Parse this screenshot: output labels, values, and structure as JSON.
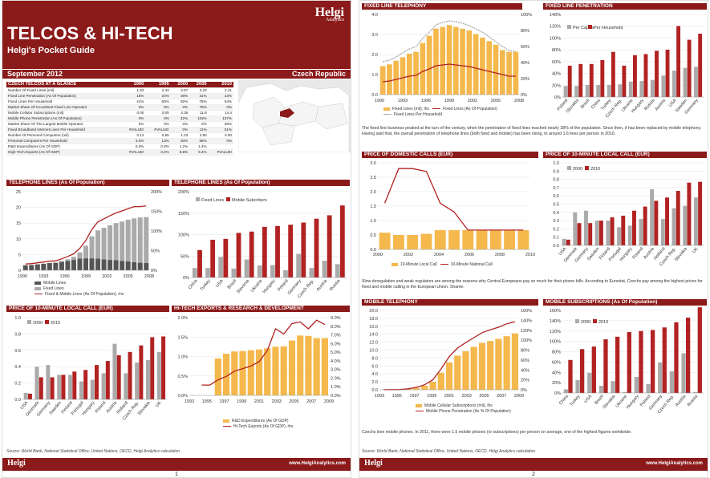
{
  "page1": {
    "title": "TELCOS & HI-TECH",
    "subtitle": "Helgi's Pocket Guide",
    "date": "September 2012",
    "country": "Czech Republic",
    "brand": "Helgi",
    "brand_sub": "Analytics",
    "glance": {
      "title": "CZECH TELCOS AT A GLANCE",
      "years": [
        "1990",
        "1995",
        "2000",
        "2005",
        "2010"
      ],
      "rows": [
        {
          "label": "Number Of Fixed Lines (mil)",
          "v": [
            "1.62",
            "2.44",
            "3.87",
            "3.22",
            "2.41"
          ]
        },
        {
          "label": "Fixed Line Penetration (As Of Population)",
          "v": [
            "16%",
            "24%",
            "38%",
            "31%",
            "23%"
          ]
        },
        {
          "label": "Fixed Lines Per Household",
          "v": [
            "41%",
            "60%",
            "92%",
            "78%",
            "54%"
          ]
        },
        {
          "label": "Market Share Of Incumbent Fixed Line Operator",
          "v": [
            "0%",
            "0%",
            "0%",
            "76%",
            "0%"
          ]
        },
        {
          "label": "Mobile Cellular Subscriptions (mil)",
          "v": [
            "0.00",
            "0.05",
            "4.35",
            "11.8",
            "14.4"
          ]
        },
        {
          "label": "Mobile Phone Penetration (As Of Population)",
          "v": [
            "0%",
            "0%",
            "42%",
            "115%",
            "137%"
          ]
        },
        {
          "label": "Market Share Of The Largest Mobile Operator",
          "v": [
            "0%",
            "0%",
            "0%",
            "0%",
            "38%"
          ]
        },
        {
          "label": "Fixed Broadband Internet Lines Per Household",
          "v": [
            "#VALUE!",
            "#VALUE!",
            "0%",
            "11%",
            "51%"
          ]
        },
        {
          "label": "Number Of Personal Computers (mil)",
          "v": [
            "0.12",
            "0.55",
            "1.23",
            "2.80",
            "0.00"
          ]
        },
        {
          "label": "Personal Computers Per Household",
          "v": [
            "3.0%",
            "13%",
            "30%",
            "68%",
            "0%"
          ]
        },
        {
          "label": "R&D Expenditures (As Of GDP)",
          "v": [
            "0.0%",
            "0.0%",
            "1.2%",
            "1.4%",
            ""
          ]
        },
        {
          "label": "High-Tech Exports (As Of GDP)",
          "v": [
            "#VALUE!",
            "3.2%",
            "5.8%",
            "9.4%",
            "#VALUE!"
          ]
        }
      ]
    },
    "sections": {
      "tel_lines": "TELEPHONE LINES (As Of Population)",
      "tel_lines2": "TELEPHONE LINES (As Of Population)",
      "price_local": "PRICE OF 10-MINUTE LOCAL CALL (EUR)",
      "hitech": "HI-TECH EXPORTS & RESEARCH & DEVELOPMENT"
    },
    "source": "Source: World Bank, National Statistical Office, United Nations, OECD, Helgi Analytics calculation",
    "url": "www.HelgiAnalytics.com",
    "page_number": "1"
  },
  "page2": {
    "sections": {
      "fixed_tel": "FIXED LINE TELEPHONY",
      "fixed_pen": "FIXED LINE PENETRATION",
      "price_dom": "PRICE OF DOMESTIC CALLS (EUR)",
      "price_local": "PRICE OF 10-MINUTE LOCAL CALL (EUR)",
      "mobile_tel": "MOBILE TELEPHONY",
      "mobile_sub": "MOBILE SUBSCRIPTIONS (As Of Population)"
    },
    "para1": "The fixed line business peaked at the turn of the century, when the penetration of fixed lines reached nearly 38% of the population. Since then, it has been replaced by mobile telephony. Having said that, the overall penetration of telephone lines (both fixed and mobile) has been rising, to around 1.6 lines per person in 2010.",
    "para2": "Slow deregulation and weak regulators are among the reasons why Central Europeans pay so much for their phone bills. According to Eurostat, Czechs pay among the highest prices for fixed and mobile calling in the European Union. Shame.",
    "para3": "Czechs love mobile phones. In 2011, there were 1.5 mobile phones (or subscriptions) per person on average, one of the highest figures worldwide.",
    "source": "Source: World Bank, National Statistical Office, United Nations, OECD, Helgi Analytics calculation",
    "url": "www.HelgiAnalytics.com",
    "page_number": "2"
  },
  "colors": {
    "brand": "#8b1a1a",
    "gray": "#9e9e9e",
    "orange": "#f5b84c",
    "red": "#b22222",
    "darkgray": "#555555"
  },
  "chart_data": [
    {
      "id": "p1_tel_lines",
      "type": "area",
      "x_ticks": [
        "1990",
        "1993",
        "1996",
        "1999",
        "2002",
        "2005",
        "2008"
      ],
      "ylim": [
        0,
        25
      ],
      "y2lim": [
        0,
        2.0
      ],
      "y2_ticks": [
        "0%",
        "50%",
        "100%",
        "150%",
        "200%"
      ],
      "y_ticks": [
        "0",
        "5",
        "10",
        "15",
        "20",
        "25"
      ],
      "series": [
        {
          "name": "Mobile Lines",
          "values": [
            0,
            0,
            0,
            0,
            0,
            0.05,
            0.2,
            0.5,
            1.0,
            2.0,
            4.0,
            7.0,
            9.0,
            10.0,
            11.0,
            11.8,
            12.5,
            13.3,
            13.9,
            14.4,
            14.6
          ]
        },
        {
          "name": "Fixed Lines",
          "values": [
            1.6,
            1.7,
            1.9,
            2.1,
            2.3,
            2.4,
            2.7,
            3.0,
            3.3,
            3.7,
            3.8,
            3.8,
            3.7,
            3.5,
            3.3,
            3.2,
            3.0,
            2.8,
            2.6,
            2.4,
            2.3
          ]
        },
        {
          "name": "Fixed & Mobile Lines (As Of Population), rhs",
          "values": [
            0.16,
            0.17,
            0.19,
            0.21,
            0.23,
            0.24,
            0.29,
            0.35,
            0.42,
            0.56,
            0.76,
            1.04,
            1.23,
            1.31,
            1.39,
            1.46,
            1.51,
            1.57,
            1.62,
            1.62,
            1.64
          ]
        }
      ]
    },
    {
      "id": "p1_tel_lines_countries",
      "type": "bar",
      "categories": [
        "China",
        "Turkey",
        "USA",
        "Brazil",
        "Slovenia",
        "Ukraine",
        "Hungary",
        "Poland",
        "Germany",
        "Czech Rep.",
        "Austria",
        "Russia"
      ],
      "ylim": [
        0,
        2.0
      ],
      "y_ticks": [
        "0%",
        "50%",
        "100%",
        "150%",
        "200%"
      ],
      "series": [
        {
          "name": "Fixed Lines",
          "values": [
            0.22,
            0.22,
            0.48,
            0.21,
            0.42,
            0.28,
            0.29,
            0.17,
            0.55,
            0.22,
            0.39,
            0.31
          ]
        },
        {
          "name": "Mobile Subcribers",
          "values": [
            0.64,
            0.88,
            0.9,
            1.04,
            1.07,
            1.18,
            1.2,
            1.23,
            1.28,
            1.37,
            1.45,
            1.68
          ]
        }
      ]
    },
    {
      "id": "p1_price_local",
      "type": "bar",
      "categories": [
        "USA",
        "Denmark",
        "Germany",
        "Sweden",
        "Finland",
        "Portugal",
        "Hungary",
        "Poland",
        "Austria",
        "Holland",
        "Czech Rep.",
        "Slovakia",
        "UK"
      ],
      "ylim": [
        0,
        1.0
      ],
      "y_ticks": [
        "0.0",
        "0.2",
        "0.4",
        "0.6",
        "0.8",
        "1.0"
      ],
      "series": [
        {
          "name": "2000",
          "values": [
            0.08,
            0.4,
            0.42,
            0.3,
            0.3,
            0.22,
            0.24,
            0.32,
            0.68,
            0.32,
            0.45,
            0.48,
            0.58
          ]
        },
        {
          "name": "2010",
          "values": [
            0.07,
            0.27,
            0.27,
            0.3,
            0.34,
            0.36,
            0.42,
            0.47,
            0.54,
            0.58,
            0.66,
            0.76,
            0.77
          ]
        }
      ]
    },
    {
      "id": "p1_hitech",
      "type": "bar",
      "x_ticks": [
        "1993",
        "1995",
        "1997",
        "1999",
        "2001",
        "2003",
        "2005",
        "2007",
        "2009"
      ],
      "ylim": [
        0,
        0.02
      ],
      "y_ticks": [
        "0.0%",
        "0.5%",
        "1.0%",
        "1.5%",
        "2.0%"
      ],
      "y2_ticks": [
        "0.0%",
        "1.0%",
        "2.0%",
        "3.0%",
        "4.0%",
        "5.0%",
        "6.0%",
        "7.0%",
        "8.0%",
        "9.0%"
      ],
      "series": [
        {
          "name": "R&D Expenditures (As Of GDP)",
          "values": [
            null,
            null,
            null,
            0.0095,
            0.0107,
            0.0113,
            0.0114,
            0.0116,
            0.0118,
            0.0121,
            0.0125,
            0.0126,
            0.0141,
            0.0154,
            0.0153,
            0.0147,
            0.0147
          ]
        },
        {
          "name": "Hi-Tech Exports (As Of GDP), rhs",
          "values": [
            null,
            0.012,
            0.012,
            0.018,
            0.022,
            0.028,
            0.031,
            0.034,
            0.039,
            0.052,
            0.077,
            0.071,
            0.083,
            0.085,
            0.077,
            0.087,
            0.082
          ]
        }
      ]
    },
    {
      "id": "p2_fixed_tel",
      "type": "area",
      "x_ticks": [
        "1990",
        "1993",
        "1996",
        "1999",
        "2002",
        "2005",
        "2008"
      ],
      "ylim": [
        0,
        4.5
      ],
      "y_ticks": [
        "0.0",
        "1.0",
        "2.0",
        "3.0",
        "4.0"
      ],
      "y2_ticks": [
        "0%",
        "20%",
        "40%",
        "60%",
        "80%",
        "100%"
      ],
      "series": [
        {
          "name": "Fixed Lines (mil), lhs",
          "values": [
            1.6,
            1.7,
            1.9,
            2.1,
            2.3,
            2.4,
            2.9,
            3.3,
            3.7,
            3.8,
            3.9,
            3.8,
            3.7,
            3.6,
            3.4,
            3.2,
            3.0,
            2.8,
            2.5,
            2.4,
            2.4
          ]
        },
        {
          "name": "Fixed Lines (As Of Population)",
          "values": [
            0.16,
            0.17,
            0.19,
            0.21,
            0.23,
            0.24,
            0.29,
            0.32,
            0.36,
            0.37,
            0.38,
            0.37,
            0.36,
            0.35,
            0.33,
            0.31,
            0.29,
            0.27,
            0.25,
            0.23,
            0.23
          ]
        },
        {
          "name": "Fixed Lines Per Household",
          "values": [
            0.41,
            0.43,
            0.47,
            0.52,
            0.57,
            0.6,
            0.7,
            0.78,
            0.87,
            0.9,
            0.92,
            0.91,
            0.89,
            0.86,
            0.82,
            0.78,
            0.72,
            0.66,
            0.6,
            0.55,
            0.54
          ]
        }
      ]
    },
    {
      "id": "p2_fixed_pen",
      "type": "bar",
      "categories": [
        "Poland",
        "Slovakia",
        "Brazil",
        "China",
        "Turkey",
        "Czech Rep.",
        "Ukraine",
        "Hungary",
        "Russia",
        "Austria",
        "USA",
        "Sweden",
        "Germany"
      ],
      "ylim": [
        0,
        1.5
      ],
      "y_ticks": [
        "0%",
        "20%",
        "40%",
        "60%",
        "80%",
        "100%",
        "120%",
        "140%"
      ],
      "series": [
        {
          "name": "Per Capita",
          "values": [
            0.2,
            0.2,
            0.22,
            0.22,
            0.22,
            0.23,
            0.28,
            0.29,
            0.31,
            0.39,
            0.48,
            0.53,
            0.55
          ]
        },
        {
          "name": "Per Household",
          "values": [
            0.57,
            0.6,
            0.6,
            0.67,
            0.82,
            0.57,
            0.76,
            0.78,
            0.84,
            0.86,
            1.29,
            1.04,
            1.15
          ]
        }
      ]
    },
    {
      "id": "p2_price_dom",
      "type": "bar",
      "x_ticks": [
        "2000",
        "2002",
        "2004",
        "2006",
        "2008",
        "2010"
      ],
      "ylim": [
        0,
        3.0
      ],
      "y_ticks": [
        "0.0",
        "0.5",
        "1.0",
        "1.5",
        "2.0",
        "2.5",
        "3.0"
      ],
      "series": [
        {
          "name": "10-Minute Local Call",
          "values": [
            0.58,
            0.5,
            0.5,
            0.54,
            0.67,
            0.67,
            0.67,
            0.67,
            0.67,
            0.67,
            0.67
          ]
        },
        {
          "name": "10-Minute National Call",
          "values": [
            1.6,
            2.8,
            2.8,
            2.7,
            1.6,
            1.3,
            0.67,
            0.67,
            0.67,
            0.67,
            0.67
          ]
        }
      ]
    },
    {
      "id": "p2_price_local",
      "type": "bar",
      "categories": [
        "USA",
        "Denmark",
        "Germany",
        "Sweden",
        "Finland",
        "Portugal",
        "Hungary",
        "Poland",
        "Austria",
        "Holland",
        "Czech Rep.",
        "Slovakia",
        "UK"
      ],
      "ylim": [
        0,
        1.0
      ],
      "y_ticks": [
        "0.0",
        "0.1",
        "0.2",
        "0.3",
        "0.4",
        "0.5",
        "0.6",
        "0.7",
        "0.8",
        "0.9",
        "1.0"
      ],
      "series": [
        {
          "name": "2000",
          "values": [
            0.08,
            0.4,
            0.42,
            0.3,
            0.3,
            0.22,
            0.24,
            0.32,
            0.68,
            0.32,
            0.45,
            0.48,
            0.58
          ]
        },
        {
          "name": "2010",
          "values": [
            0.07,
            0.27,
            0.27,
            0.3,
            0.34,
            0.36,
            0.42,
            0.47,
            0.54,
            0.58,
            0.66,
            0.76,
            0.77
          ]
        }
      ]
    },
    {
      "id": "p2_mobile_tel",
      "type": "area",
      "x_ticks": [
        "1993",
        "1995",
        "1997",
        "1999",
        "2001",
        "2003",
        "2005",
        "2007",
        "2009"
      ],
      "ylim": [
        0,
        20
      ],
      "y_ticks": [
        "0.0",
        "2.0",
        "4.0",
        "6.0",
        "8.0",
        "10.0",
        "12.0",
        "14.0",
        "16.0",
        "18.0",
        "20.0"
      ],
      "y2_ticks": [
        "0%",
        "20%",
        "40%",
        "60%",
        "80%",
        "100%",
        "120%",
        "140%",
        "160%"
      ],
      "series": [
        {
          "name": "Mobile Cellular Subscriptions (mil), lhs",
          "values": [
            0.01,
            0.03,
            0.05,
            0.2,
            0.5,
            1.0,
            2.0,
            4.3,
            6.9,
            8.6,
            9.7,
            10.8,
            11.8,
            12.3,
            12.8,
            13.5,
            14.2
          ]
        },
        {
          "name": "Mobile Phone Penetration (As % Of Population)",
          "values": [
            0.001,
            0.003,
            0.005,
            0.02,
            0.05,
            0.1,
            0.2,
            0.42,
            0.67,
            0.84,
            0.95,
            1.05,
            1.15,
            1.21,
            1.26,
            1.33,
            1.37
          ]
        }
      ]
    },
    {
      "id": "p2_mobile_sub",
      "type": "bar",
      "categories": [
        "China",
        "Turkey",
        "USA",
        "Brazil",
        "Slovakia",
        "Ukraine",
        "Hungary",
        "Poland",
        "Germany",
        "Czech Rep.",
        "Austria",
        "Russia"
      ],
      "ylim": [
        0,
        1.6
      ],
      "y_ticks": [
        "0%",
        "20%",
        "40%",
        "60%",
        "80%",
        "100%",
        "120%",
        "140%",
        "160%"
      ],
      "series": [
        {
          "name": "2000",
          "values": [
            0.07,
            0.25,
            0.39,
            0.14,
            0.23,
            0.02,
            0.31,
            0.17,
            0.59,
            0.42,
            0.77,
            0.02
          ]
        },
        {
          "name": "2010",
          "values": [
            0.64,
            0.85,
            0.9,
            1.04,
            1.09,
            1.18,
            1.2,
            1.22,
            1.27,
            1.37,
            1.46,
            1.66
          ]
        }
      ]
    }
  ]
}
